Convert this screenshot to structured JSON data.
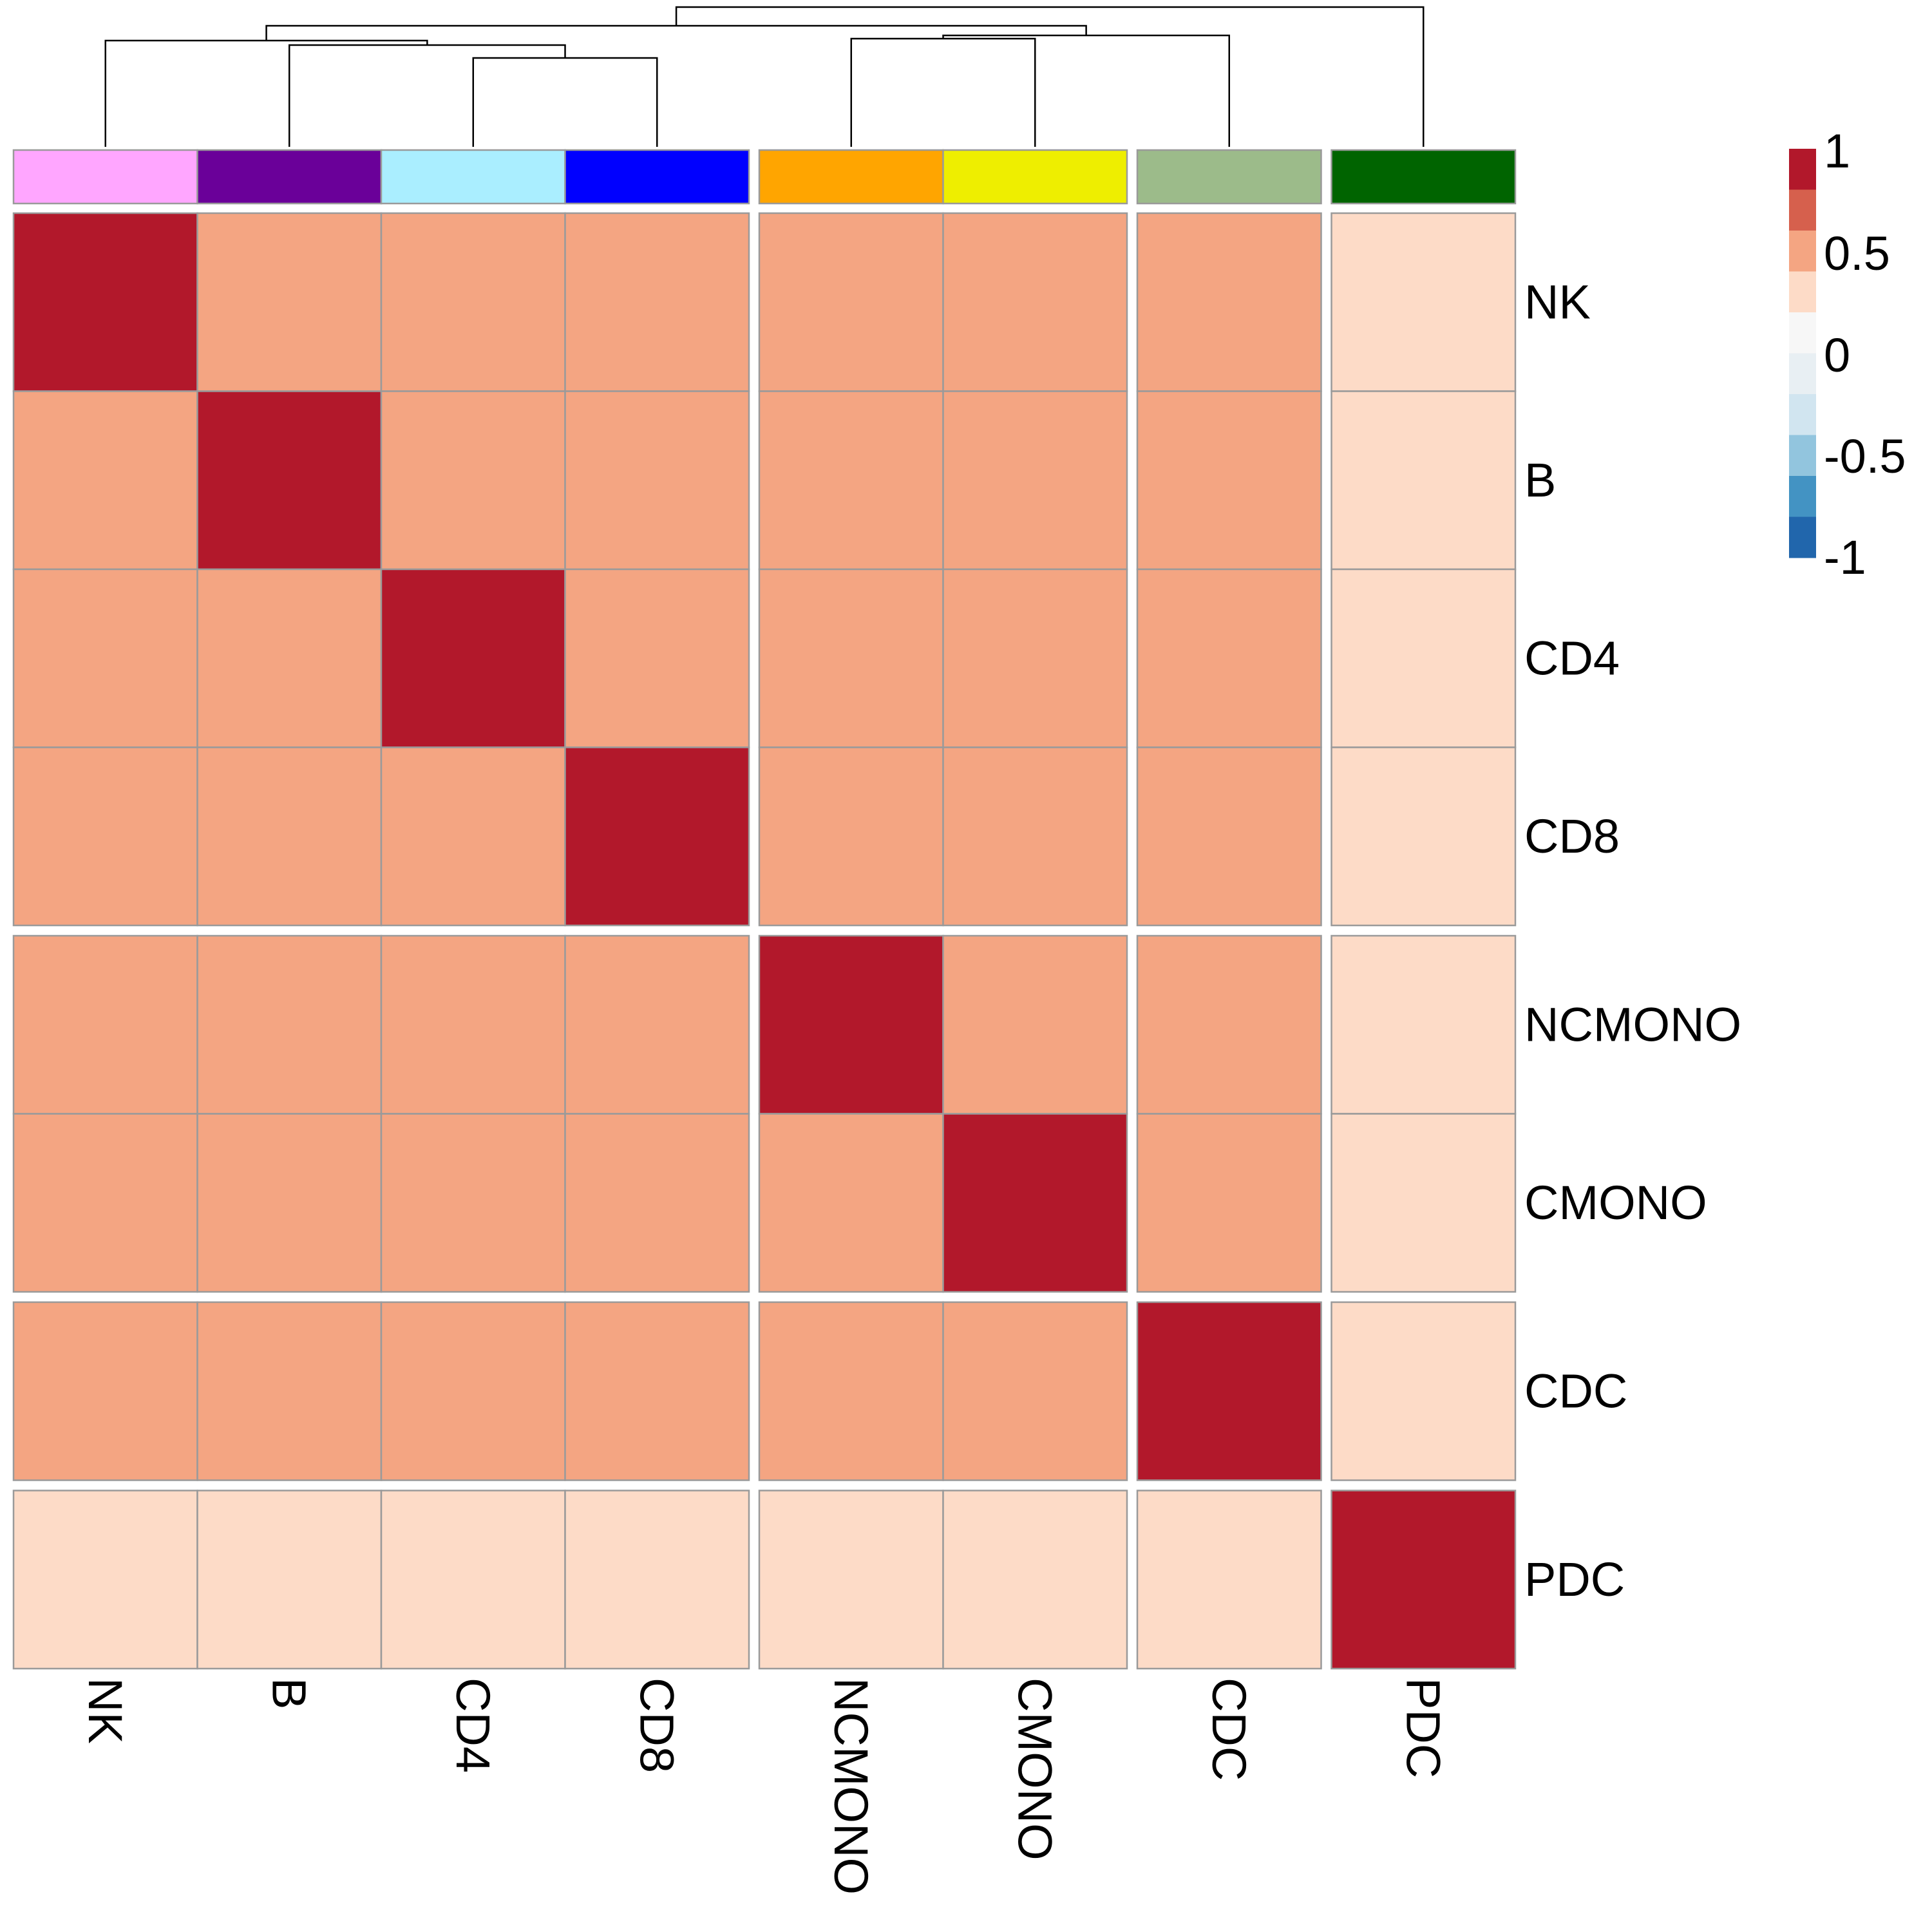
{
  "chart_data": {
    "type": "heatmap",
    "rows": [
      "NK",
      "B",
      "CD4",
      "CD8",
      "NCMONO",
      "CMONO",
      "CDC",
      "PDC"
    ],
    "columns": [
      "NK",
      "B",
      "CD4",
      "CD8",
      "NCMONO",
      "CMONO",
      "CDC",
      "PDC"
    ],
    "values": [
      [
        1.0,
        0.45,
        0.45,
        0.45,
        0.45,
        0.45,
        0.45,
        0.2
      ],
      [
        0.45,
        1.0,
        0.45,
        0.45,
        0.45,
        0.45,
        0.45,
        0.2
      ],
      [
        0.45,
        0.45,
        1.0,
        0.45,
        0.45,
        0.45,
        0.45,
        0.2
      ],
      [
        0.45,
        0.45,
        0.45,
        1.0,
        0.45,
        0.45,
        0.45,
        0.2
      ],
      [
        0.45,
        0.45,
        0.45,
        0.45,
        1.0,
        0.45,
        0.45,
        0.2
      ],
      [
        0.45,
        0.45,
        0.45,
        0.45,
        0.45,
        1.0,
        0.45,
        0.2
      ],
      [
        0.45,
        0.45,
        0.45,
        0.45,
        0.45,
        0.45,
        1.0,
        0.2
      ],
      [
        0.2,
        0.2,
        0.2,
        0.2,
        0.2,
        0.2,
        0.2,
        1.0
      ]
    ],
    "row_groups": [
      [
        "NK",
        "B",
        "CD4",
        "CD8"
      ],
      [
        "NCMONO",
        "CMONO"
      ],
      [
        "CDC"
      ],
      [
        "PDC"
      ]
    ],
    "column_groups": [
      [
        "NK",
        "B",
        "CD4",
        "CD8"
      ],
      [
        "NCMONO",
        "CMONO"
      ],
      [
        "CDC"
      ],
      [
        "PDC"
      ]
    ],
    "column_annotation_colors": {
      "NK": "#FFA6FF",
      "B": "#6A0099",
      "CD4": "#AAEEFF",
      "CD8": "#0000FF",
      "NCMONO": "#FFA500",
      "CMONO": "#EEEE00",
      "CDC": "#9CBB8A",
      "PDC": "#006400"
    },
    "colorscale": {
      "range": [
        -1,
        1
      ],
      "bins": [
        {
          "from": 0.8,
          "to": 1.0,
          "color": "#B2182B"
        },
        {
          "from": 0.6,
          "to": 0.8,
          "color": "#D6604D"
        },
        {
          "from": 0.4,
          "to": 0.6,
          "color": "#F4A582"
        },
        {
          "from": 0.2,
          "to": 0.4,
          "color": "#FDDBC7"
        },
        {
          "from": 0.0,
          "to": 0.2,
          "color": "#F7F7F7"
        },
        {
          "from": -0.2,
          "to": 0.0,
          "color": "#E8EFF3"
        },
        {
          "from": -0.4,
          "to": -0.2,
          "color": "#D1E5F0"
        },
        {
          "from": -0.6,
          "to": -0.4,
          "color": "#92C5DE"
        },
        {
          "from": -0.8,
          "to": -0.6,
          "color": "#4393C3"
        },
        {
          "from": -1.0,
          "to": -0.8,
          "color": "#2166AC"
        }
      ],
      "tick_labels": [
        "1",
        "0.5",
        "0",
        "-0.5",
        "-1"
      ]
    },
    "dendrogram": {
      "type": "column",
      "merges": [
        [
          "CD4",
          "CD8"
        ],
        [
          "B",
          "CD4+CD8"
        ],
        [
          "NCMONO",
          "CMONO"
        ],
        [
          "NCMONO+CMONO",
          "CDC"
        ],
        [
          "NK",
          "B+CD4+CD8"
        ],
        [
          "NK+B+CD4+CD8",
          "NCMONO+CMONO+CDC"
        ],
        [
          "NK+B+CD4+CD8+NCMONO+CMONO+CDC",
          "PDC"
        ]
      ]
    },
    "legend_position": "top-right",
    "grid": true
  }
}
